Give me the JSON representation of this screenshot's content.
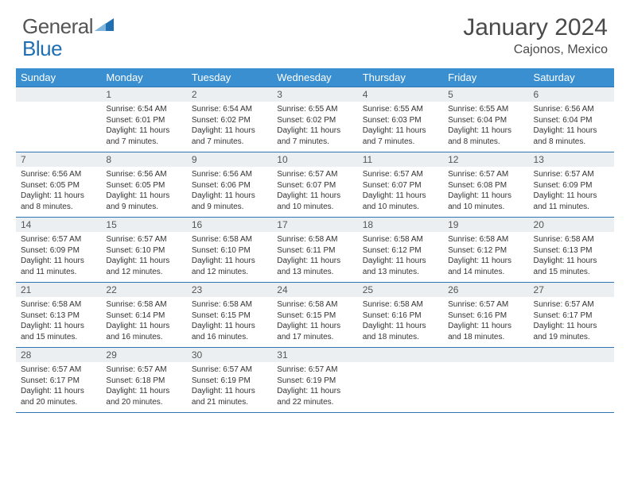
{
  "brand": {
    "part1": "General",
    "part2": "Blue"
  },
  "title": "January 2024",
  "location": "Cajonos, Mexico",
  "colors": {
    "header_bg": "#3a8fd0",
    "border": "#2e75b6",
    "daynum_bg": "#eceff1",
    "logo_blue": "#1f6fb2",
    "text": "#333333"
  },
  "dow": [
    "Sunday",
    "Monday",
    "Tuesday",
    "Wednesday",
    "Thursday",
    "Friday",
    "Saturday"
  ],
  "weeks": [
    [
      null,
      {
        "n": "1",
        "sr": "Sunrise: 6:54 AM",
        "ss": "Sunset: 6:01 PM",
        "d1": "Daylight: 11 hours",
        "d2": "and 7 minutes."
      },
      {
        "n": "2",
        "sr": "Sunrise: 6:54 AM",
        "ss": "Sunset: 6:02 PM",
        "d1": "Daylight: 11 hours",
        "d2": "and 7 minutes."
      },
      {
        "n": "3",
        "sr": "Sunrise: 6:55 AM",
        "ss": "Sunset: 6:02 PM",
        "d1": "Daylight: 11 hours",
        "d2": "and 7 minutes."
      },
      {
        "n": "4",
        "sr": "Sunrise: 6:55 AM",
        "ss": "Sunset: 6:03 PM",
        "d1": "Daylight: 11 hours",
        "d2": "and 7 minutes."
      },
      {
        "n": "5",
        "sr": "Sunrise: 6:55 AM",
        "ss": "Sunset: 6:04 PM",
        "d1": "Daylight: 11 hours",
        "d2": "and 8 minutes."
      },
      {
        "n": "6",
        "sr": "Sunrise: 6:56 AM",
        "ss": "Sunset: 6:04 PM",
        "d1": "Daylight: 11 hours",
        "d2": "and 8 minutes."
      }
    ],
    [
      {
        "n": "7",
        "sr": "Sunrise: 6:56 AM",
        "ss": "Sunset: 6:05 PM",
        "d1": "Daylight: 11 hours",
        "d2": "and 8 minutes."
      },
      {
        "n": "8",
        "sr": "Sunrise: 6:56 AM",
        "ss": "Sunset: 6:05 PM",
        "d1": "Daylight: 11 hours",
        "d2": "and 9 minutes."
      },
      {
        "n": "9",
        "sr": "Sunrise: 6:56 AM",
        "ss": "Sunset: 6:06 PM",
        "d1": "Daylight: 11 hours",
        "d2": "and 9 minutes."
      },
      {
        "n": "10",
        "sr": "Sunrise: 6:57 AM",
        "ss": "Sunset: 6:07 PM",
        "d1": "Daylight: 11 hours",
        "d2": "and 10 minutes."
      },
      {
        "n": "11",
        "sr": "Sunrise: 6:57 AM",
        "ss": "Sunset: 6:07 PM",
        "d1": "Daylight: 11 hours",
        "d2": "and 10 minutes."
      },
      {
        "n": "12",
        "sr": "Sunrise: 6:57 AM",
        "ss": "Sunset: 6:08 PM",
        "d1": "Daylight: 11 hours",
        "d2": "and 10 minutes."
      },
      {
        "n": "13",
        "sr": "Sunrise: 6:57 AM",
        "ss": "Sunset: 6:09 PM",
        "d1": "Daylight: 11 hours",
        "d2": "and 11 minutes."
      }
    ],
    [
      {
        "n": "14",
        "sr": "Sunrise: 6:57 AM",
        "ss": "Sunset: 6:09 PM",
        "d1": "Daylight: 11 hours",
        "d2": "and 11 minutes."
      },
      {
        "n": "15",
        "sr": "Sunrise: 6:57 AM",
        "ss": "Sunset: 6:10 PM",
        "d1": "Daylight: 11 hours",
        "d2": "and 12 minutes."
      },
      {
        "n": "16",
        "sr": "Sunrise: 6:58 AM",
        "ss": "Sunset: 6:10 PM",
        "d1": "Daylight: 11 hours",
        "d2": "and 12 minutes."
      },
      {
        "n": "17",
        "sr": "Sunrise: 6:58 AM",
        "ss": "Sunset: 6:11 PM",
        "d1": "Daylight: 11 hours",
        "d2": "and 13 minutes."
      },
      {
        "n": "18",
        "sr": "Sunrise: 6:58 AM",
        "ss": "Sunset: 6:12 PM",
        "d1": "Daylight: 11 hours",
        "d2": "and 13 minutes."
      },
      {
        "n": "19",
        "sr": "Sunrise: 6:58 AM",
        "ss": "Sunset: 6:12 PM",
        "d1": "Daylight: 11 hours",
        "d2": "and 14 minutes."
      },
      {
        "n": "20",
        "sr": "Sunrise: 6:58 AM",
        "ss": "Sunset: 6:13 PM",
        "d1": "Daylight: 11 hours",
        "d2": "and 15 minutes."
      }
    ],
    [
      {
        "n": "21",
        "sr": "Sunrise: 6:58 AM",
        "ss": "Sunset: 6:13 PM",
        "d1": "Daylight: 11 hours",
        "d2": "and 15 minutes."
      },
      {
        "n": "22",
        "sr": "Sunrise: 6:58 AM",
        "ss": "Sunset: 6:14 PM",
        "d1": "Daylight: 11 hours",
        "d2": "and 16 minutes."
      },
      {
        "n": "23",
        "sr": "Sunrise: 6:58 AM",
        "ss": "Sunset: 6:15 PM",
        "d1": "Daylight: 11 hours",
        "d2": "and 16 minutes."
      },
      {
        "n": "24",
        "sr": "Sunrise: 6:58 AM",
        "ss": "Sunset: 6:15 PM",
        "d1": "Daylight: 11 hours",
        "d2": "and 17 minutes."
      },
      {
        "n": "25",
        "sr": "Sunrise: 6:58 AM",
        "ss": "Sunset: 6:16 PM",
        "d1": "Daylight: 11 hours",
        "d2": "and 18 minutes."
      },
      {
        "n": "26",
        "sr": "Sunrise: 6:57 AM",
        "ss": "Sunset: 6:16 PM",
        "d1": "Daylight: 11 hours",
        "d2": "and 18 minutes."
      },
      {
        "n": "27",
        "sr": "Sunrise: 6:57 AM",
        "ss": "Sunset: 6:17 PM",
        "d1": "Daylight: 11 hours",
        "d2": "and 19 minutes."
      }
    ],
    [
      {
        "n": "28",
        "sr": "Sunrise: 6:57 AM",
        "ss": "Sunset: 6:17 PM",
        "d1": "Daylight: 11 hours",
        "d2": "and 20 minutes."
      },
      {
        "n": "29",
        "sr": "Sunrise: 6:57 AM",
        "ss": "Sunset: 6:18 PM",
        "d1": "Daylight: 11 hours",
        "d2": "and 20 minutes."
      },
      {
        "n": "30",
        "sr": "Sunrise: 6:57 AM",
        "ss": "Sunset: 6:19 PM",
        "d1": "Daylight: 11 hours",
        "d2": "and 21 minutes."
      },
      {
        "n": "31",
        "sr": "Sunrise: 6:57 AM",
        "ss": "Sunset: 6:19 PM",
        "d1": "Daylight: 11 hours",
        "d2": "and 22 minutes."
      },
      null,
      null,
      null
    ]
  ]
}
